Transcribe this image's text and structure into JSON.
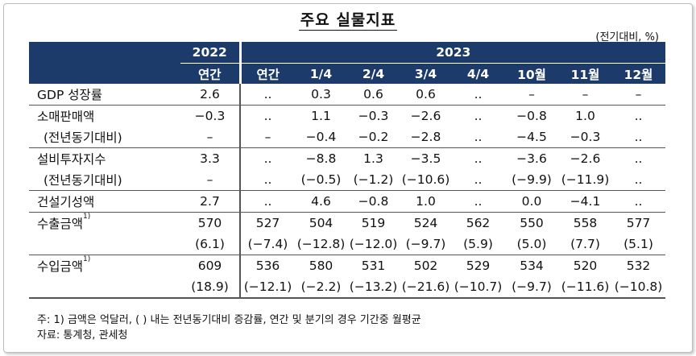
{
  "title": "주요 실물지표",
  "unit": "(전기대비, %)",
  "header": {
    "year_2022": "2022",
    "year_2023": "2023",
    "cols": [
      "연간",
      "연간",
      "1/4",
      "2/4",
      "3/4",
      "4/4",
      "10월",
      "11월",
      "12월"
    ]
  },
  "rows": [
    {
      "label": "GDP 성장률",
      "values": [
        "2.6",
        "..",
        "0.3",
        "0.6",
        "0.6",
        "..",
        "–",
        "–",
        "–"
      ]
    },
    {
      "label": "소매판매액",
      "values": [
        "−0.3",
        "..",
        "1.1",
        "−0.3",
        "−2.6",
        "..",
        "−0.8",
        "1.0",
        ".."
      ]
    },
    {
      "label": "(전년동기대비)",
      "values": [
        "–",
        "–",
        "−0.4",
        "−0.2",
        "−2.8",
        "..",
        "−4.5",
        "−0.3",
        ".."
      ]
    },
    {
      "label": "설비투자지수",
      "values": [
        "3.3",
        "..",
        "−8.8",
        "1.3",
        "−3.5",
        "..",
        "−3.6",
        "−2.6",
        ".."
      ]
    },
    {
      "label": "(전년동기대비)",
      "values": [
        "–",
        "..",
        "(−0.5)",
        "(−1.2)",
        "(−10.6)",
        "..",
        "(−9.9)",
        "(−11.9)",
        ".."
      ]
    },
    {
      "label": "건설기성액",
      "values": [
        "2.7",
        "..",
        "4.6",
        "−0.8",
        "1.0",
        "..",
        "0.0",
        "−4.1",
        ".."
      ]
    },
    {
      "label": "수출금액",
      "sup": "1)",
      "values": [
        "570",
        "527",
        "504",
        "519",
        "524",
        "562",
        "550",
        "558",
        "577"
      ]
    },
    {
      "label": "",
      "values": [
        "(6.1)",
        "(−7.4)",
        "(−12.8)",
        "(−12.0)",
        "(−9.7)",
        "(5.9)",
        "(5.0)",
        "(7.7)",
        "(5.1)"
      ]
    },
    {
      "label": "수입금액",
      "sup": "1)",
      "values": [
        "609",
        "536",
        "580",
        "531",
        "502",
        "529",
        "534",
        "520",
        "532"
      ]
    },
    {
      "label": "",
      "values": [
        "(18.9)",
        "(−12.1)",
        "(−2.2)",
        "(−13.2)",
        "(−21.6)",
        "(−10.7)",
        "(−9.7)",
        "(−11.6)",
        "(−10.8)"
      ]
    }
  ],
  "notes": {
    "note": "주: 1) 금액은 억달러, ( ) 내는 전년동기대비 증감률, 연간 및 분기의 경우 기간중 월평균",
    "source": "자료: 통계청, 관세청"
  }
}
